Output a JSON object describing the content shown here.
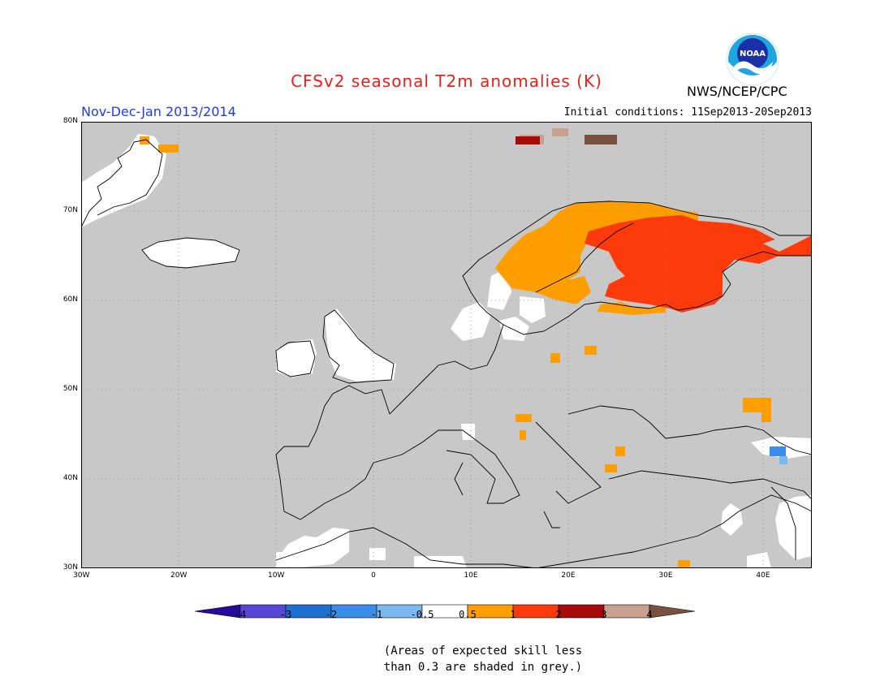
{
  "header": {
    "title": "CFSv2 seasonal T2m anomalies (K)",
    "period": "Nov-Dec-Jan 2013/2014",
    "initial_conditions": "Initial conditions: 11Sep2013-20Sep2013",
    "agency": "NWS/NCEP/CPC",
    "logo_text": "NOAA"
  },
  "colors": {
    "title": "#e8201a",
    "period": "#1e3ce6",
    "map_grey": "#c8c8c8",
    "coast": "#000000"
  },
  "map": {
    "lon_range": [
      -30,
      45
    ],
    "lat_range": [
      30,
      80
    ],
    "lon_ticks": [
      "30W",
      "20W",
      "10W",
      "0",
      "10E",
      "20E",
      "30E",
      "40E"
    ],
    "lat_ticks": [
      "30N",
      "40N",
      "50N",
      "60N",
      "70N",
      "80N"
    ]
  },
  "colorbar": {
    "labels": [
      "-4",
      "-3",
      "-2",
      "-1",
      "-0.5",
      "0.5",
      "1",
      "2",
      "3",
      "4"
    ],
    "colors": [
      "#2a0a9c",
      "#5a46d6",
      "#1f6fd0",
      "#3a8eea",
      "#7bb8f0",
      "#ffffff",
      "#ff9e00",
      "#ff3a0a",
      "#a80a0a",
      "#c8a08e",
      "#7a5040"
    ]
  },
  "note": {
    "line1": "(Areas of expected skill less",
    "line2": "than 0.3 are shaded in grey.)"
  }
}
